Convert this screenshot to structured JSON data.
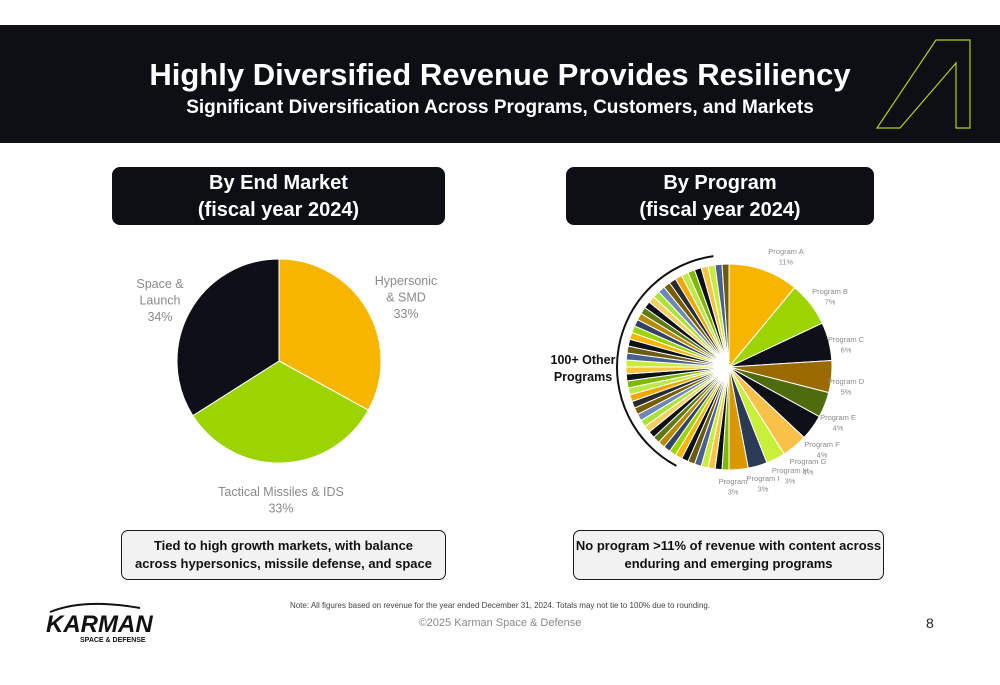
{
  "header": {
    "title": "Highly Diversified Revenue Provides Resiliency",
    "subtitle": "Significant Diversification Across Programs, Customers, and Markets",
    "logo_icon": "stylized-a-mark-icon"
  },
  "panels": {
    "left": {
      "line1": "By End Market",
      "line2": "(fiscal  year 2024)"
    },
    "right": {
      "line1": "By Program",
      "line2": "(fiscal  year 2024)"
    }
  },
  "colors": {
    "gold": "#f7b500",
    "lime": "#9bd400",
    "black": "#0d1117",
    "dark_gold": "#9a6a00",
    "olive": "#5a6b10",
    "label_gray": "#8a8a8a"
  },
  "chart_data": [
    {
      "type": "pie",
      "title": "By End Market (fiscal  year 2024)",
      "slices": [
        {
          "label": "Hypersonic & SMD",
          "label_lines": [
            "Hypersonic",
            "& SMD"
          ],
          "pct_label": "33%",
          "value": 33,
          "color": "#f7b500"
        },
        {
          "label": "Tactical Missiles & IDS",
          "label_lines": [
            "Tactical Missiles & IDS"
          ],
          "pct_label": "33%",
          "value": 33,
          "color": "#9bd400"
        },
        {
          "label": "Space & Launch",
          "label_lines": [
            "Space &",
            "Launch"
          ],
          "pct_label": "34%",
          "value": 34,
          "color": "#0d1117"
        }
      ]
    },
    {
      "type": "pie",
      "title": "By Program (fiscal  year 2024)",
      "slices": [
        {
          "label": "Program A",
          "pct_label": "11%",
          "value": 11,
          "color": "#f7b500"
        },
        {
          "label": "Program B",
          "pct_label": "7%",
          "value": 7,
          "color": "#9bd400"
        },
        {
          "label": "Program C",
          "pct_label": "6%",
          "value": 6,
          "color": "#0d1117"
        },
        {
          "label": "Program D",
          "pct_label": "5%",
          "value": 5,
          "color": "#9a6a00"
        },
        {
          "label": "Program E",
          "pct_label": "4%",
          "value": 4,
          "color": "#4e6b0e"
        },
        {
          "label": "Program F",
          "pct_label": "4%",
          "value": 4,
          "color": "#0d1117"
        },
        {
          "label": "Program G",
          "pct_label": "4%",
          "value": 4,
          "color": "#f8c24a"
        },
        {
          "label": "Program H",
          "pct_label": "3%",
          "value": 3,
          "color": "#c8ef3a"
        },
        {
          "label": "Program I",
          "pct_label": "3%",
          "value": 3,
          "color": "#2b3a55"
        },
        {
          "label": "Program",
          "pct_label": "3%",
          "value": 3,
          "color": "#d99800"
        }
      ],
      "other_label_lines": [
        "100+ Other",
        "Programs"
      ],
      "other_colors": [
        "#7fb800",
        "#0d1117",
        "#f5c542",
        "#c9ec3c",
        "#48618e",
        "#6b5a10",
        "#0d1117",
        "#f7b500",
        "#9bd400",
        "#324466",
        "#b88a00",
        "#5f7a12",
        "#0d1117",
        "#f4d063",
        "#a9e33a",
        "#6f88b3",
        "#7a5c00",
        "#2c2c2c",
        "#f0a800",
        "#bde84a"
      ]
    }
  ],
  "callouts": {
    "left": {
      "line1": "Tied to high growth markets, with balance",
      "line2": "across hypersonics, missile defense, and space"
    },
    "right": {
      "line1": "No program >11% of revenue with content across",
      "line2": "enduring and emerging programs"
    }
  },
  "footer": {
    "note": "Note:  All figures based on revenue for the year ended December 31, 2024. Totals may not tie to 100% due to rounding.",
    "copyright": "©2025 Karman Space & Defense",
    "page_number": "8",
    "brand_name": "KARMAN",
    "brand_tagline": "SPACE & DEFENSE"
  }
}
